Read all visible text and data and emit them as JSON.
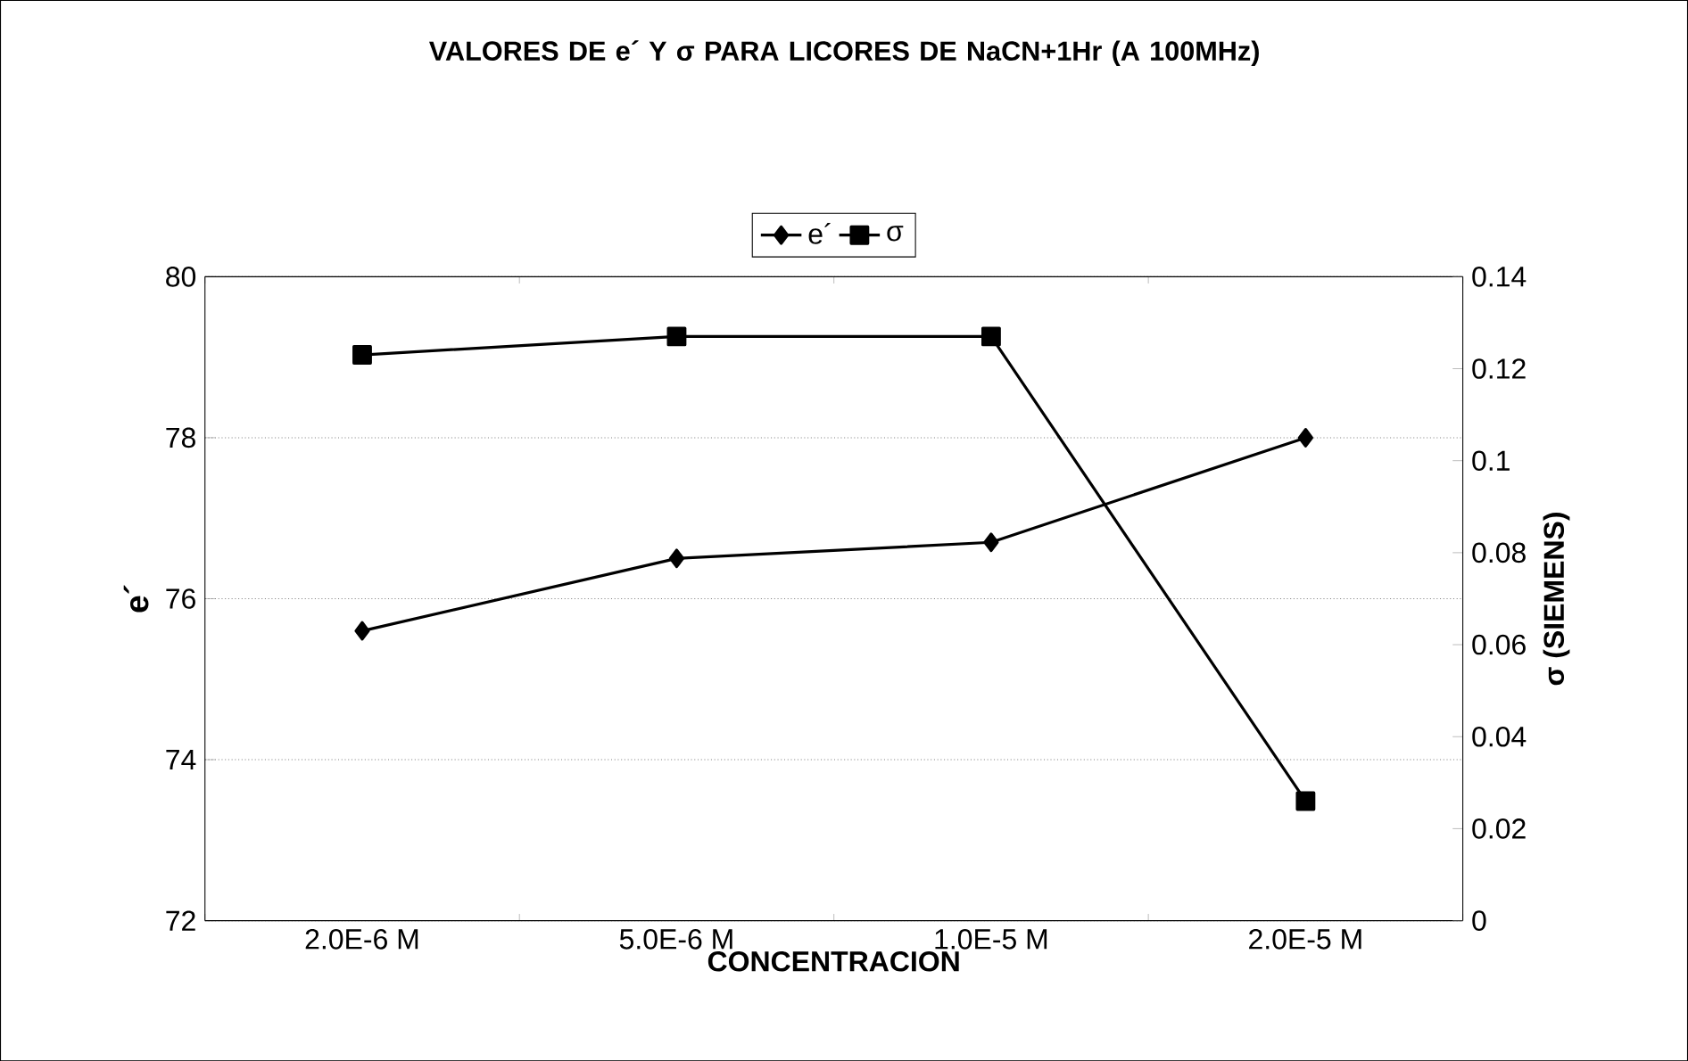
{
  "chart_data": {
    "type": "line",
    "title": "VALORES DE e´ Y σ PARA LICORES DE NaCN+1Hr  (A 100MHz)",
    "xlabel": "CONCENTRACION",
    "ylabel": "e´",
    "y2label": "σ (SIEMENS)",
    "categories": [
      "2.0E-6 M",
      "5.0E-6 M",
      "1.0E-5 M",
      "2.0E-5 M"
    ],
    "series": [
      {
        "name": "e´",
        "color": "#000000",
        "marker": "diamond",
        "values": [
          75.6,
          76.5,
          76.7,
          78.0
        ]
      },
      {
        "name": "σ",
        "color": "#000000",
        "marker": "square",
        "axis": "y2",
        "values": [
          0.123,
          0.127,
          0.127,
          0.026
        ]
      }
    ],
    "ylim": [
      72,
      80
    ],
    "yticks": [
      72,
      74,
      76,
      78,
      80
    ],
    "y2lim": [
      0,
      0.14
    ],
    "y2ticks": [
      0,
      0.02,
      0.04,
      0.06,
      0.08,
      0.1,
      0.12,
      0.14
    ],
    "grid": "y",
    "legend": "top"
  }
}
